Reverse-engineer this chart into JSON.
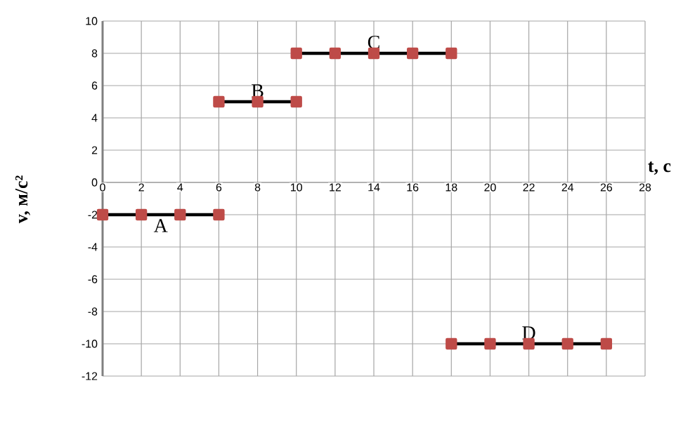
{
  "chart_data": {
    "type": "line",
    "xlabel": "t, с",
    "ylabel": "v, м/с²",
    "xlim": [
      0,
      28
    ],
    "ylim": [
      -12,
      10
    ],
    "xticks": [
      0,
      2,
      4,
      6,
      8,
      10,
      12,
      14,
      16,
      18,
      20,
      22,
      24,
      26,
      28
    ],
    "yticks": [
      -12,
      -10,
      -8,
      -6,
      -4,
      -2,
      0,
      2,
      4,
      6,
      8,
      10
    ],
    "grid": true,
    "marker": "square",
    "line_style": "solid",
    "series": [
      {
        "name": "A",
        "color": "#000000",
        "x": [
          0,
          2,
          4,
          6
        ],
        "values": [
          -2,
          -2,
          -2,
          -2
        ]
      },
      {
        "name": "B",
        "color": "#000000",
        "x": [
          6,
          8,
          10
        ],
        "values": [
          5,
          5,
          5
        ]
      },
      {
        "name": "C",
        "color": "#000000",
        "x": [
          10,
          12,
          14,
          16,
          18
        ],
        "values": [
          8,
          8,
          8,
          8,
          8
        ]
      },
      {
        "name": "D",
        "color": "#000000",
        "x": [
          18,
          20,
          22,
          24,
          26
        ],
        "values": [
          -10,
          -10,
          -10,
          -10,
          -10
        ]
      }
    ]
  }
}
